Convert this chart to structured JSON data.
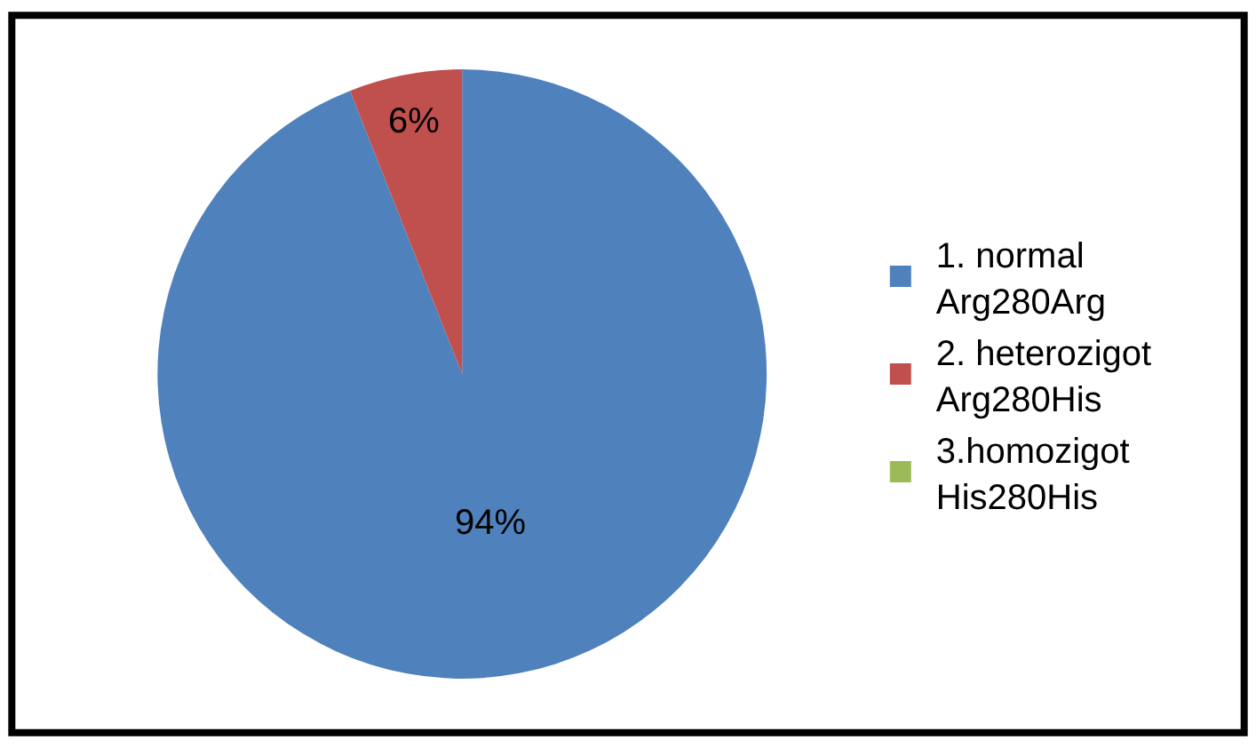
{
  "chart_data": {
    "type": "pie",
    "categories": [
      "1. normal\nArg280Arg",
      "2. heterozigot\nArg280His",
      "3.homozigot\nHis280His"
    ],
    "values": [
      94,
      6,
      0
    ],
    "colors": [
      "#4f81bd",
      "#c0504d",
      "#9bbb59"
    ],
    "value_labels": [
      "94%",
      "6%",
      null
    ],
    "legend": "right"
  }
}
